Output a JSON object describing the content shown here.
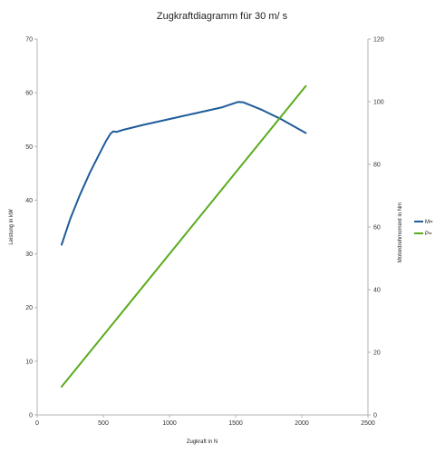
{
  "chart_data": {
    "type": "line",
    "title": "Zugkraftdiagramm für 30 m/ s",
    "xlabel": "Zugkraft in N",
    "ylabel_left": "Leistung in kW",
    "ylabel_right": "Motordrehmoment in Nm",
    "xlim": [
      0,
      2500
    ],
    "ylim_left": [
      0,
      70
    ],
    "ylim_right": [
      0,
      120
    ],
    "x_ticks": [
      "0",
      "500",
      "1000",
      "1500",
      "2000",
      "2500"
    ],
    "y_ticks_left": [
      "0",
      "10",
      "20",
      "30",
      "40",
      "50",
      "60",
      "70"
    ],
    "y_ticks_right": [
      "0",
      "20",
      "40",
      "60",
      "80",
      "100",
      "120"
    ],
    "grid": false,
    "legend_position": "right",
    "series": [
      {
        "name": "M=",
        "axis": "left",
        "color": "#1f5c99",
        "x": [
          185,
          250,
          320,
          400,
          470,
          520,
          555,
          575,
          600,
          650,
          800,
          1000,
          1200,
          1400,
          1520,
          1560,
          1700,
          1850,
          2030
        ],
        "y": [
          31.7,
          36.5,
          40.8,
          45.2,
          48.6,
          51,
          52.4,
          52.8,
          52.7,
          53.1,
          54,
          55.1,
          56.2,
          57.3,
          58.3,
          58.2,
          56.8,
          55,
          52.5
        ]
      },
      {
        "name": "P=",
        "axis": "right",
        "color": "#5aab1e",
        "x": [
          185,
          2030
        ],
        "y": [
          9,
          105
        ]
      }
    ]
  }
}
